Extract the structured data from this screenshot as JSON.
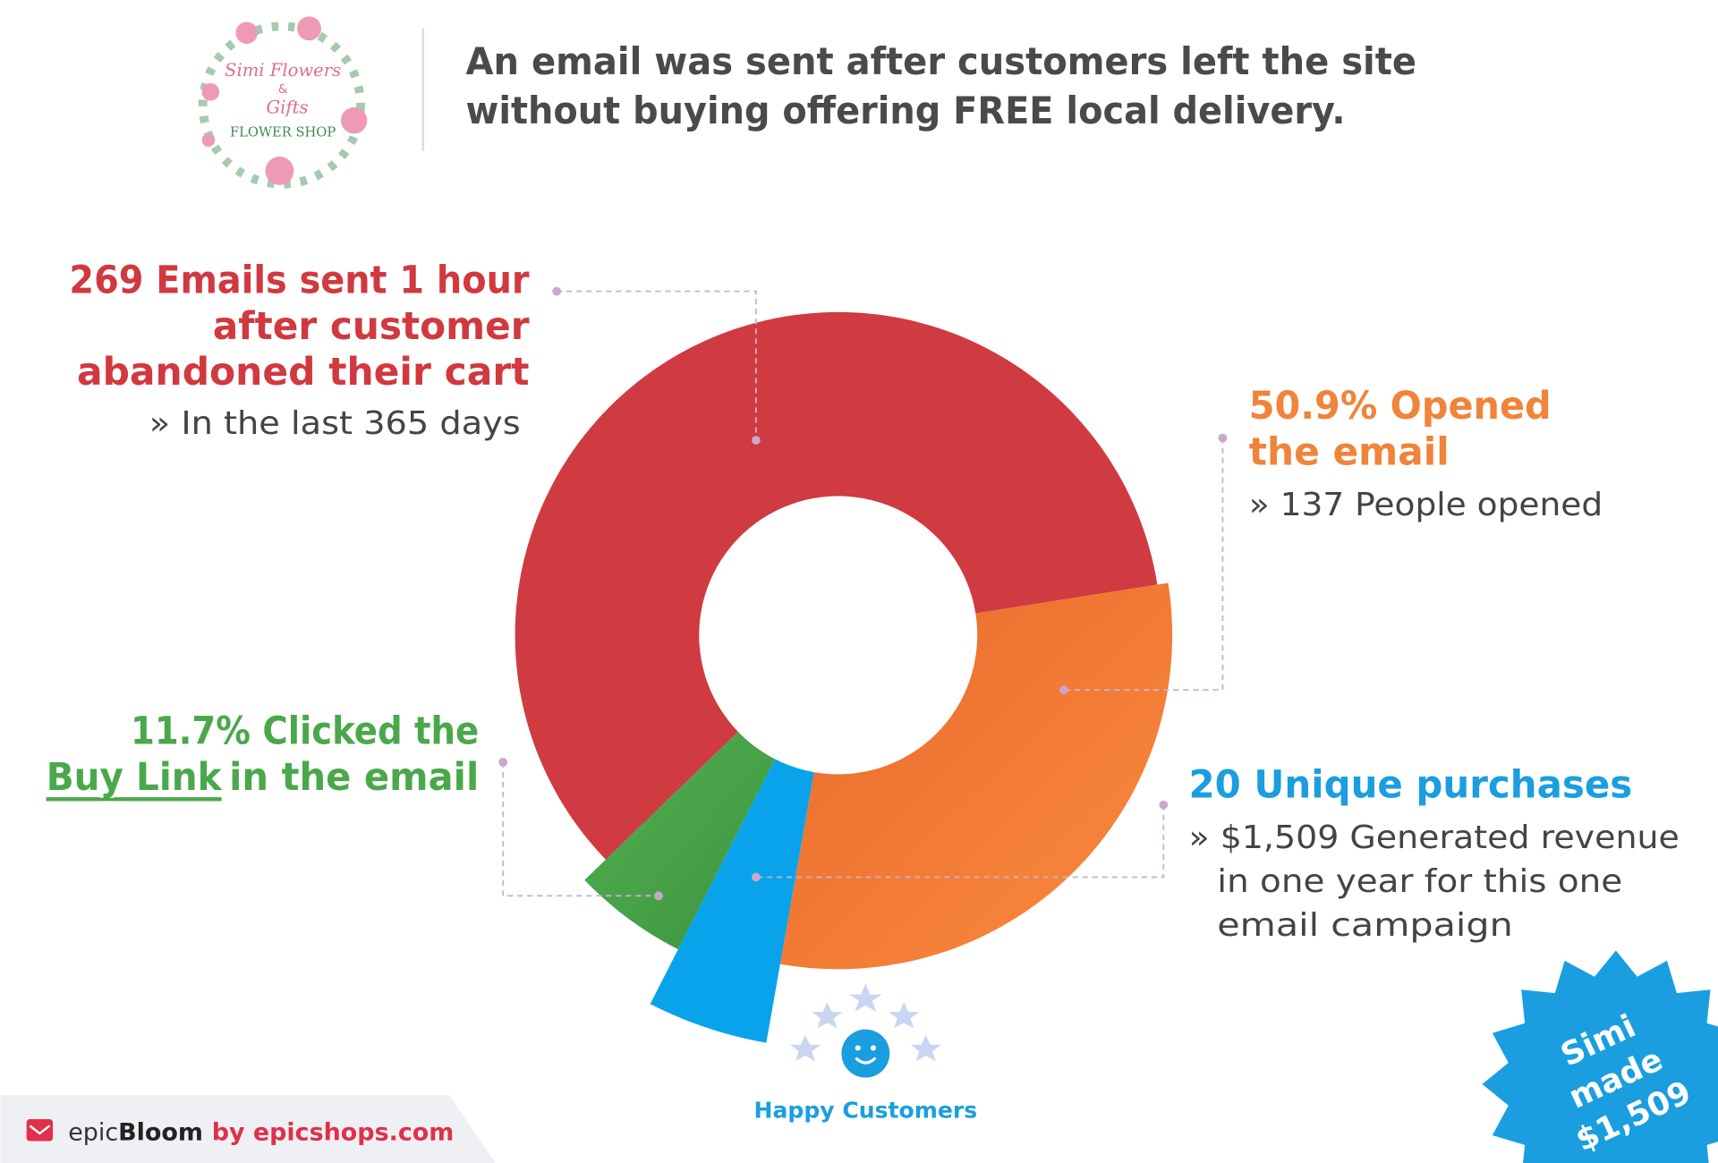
{
  "header": {
    "logo": [
      "Simi Flowers",
      "&",
      "Gifts",
      "FLOWER SHOP"
    ],
    "title": [
      "An email was sent after customers left the site",
      "without buying offering FREE local delivery."
    ]
  },
  "callouts": {
    "sent": {
      "title": [
        "269 Emails sent 1 hour",
        "after customer",
        "abandoned their cart"
      ],
      "note": "» In the last 365 days"
    },
    "opened": {
      "title": [
        "50.9% Opened",
        "the email"
      ],
      "note": "» 137 People opened"
    },
    "clicked": {
      "title": "11.7% Clicked the",
      "link": "Buy Link",
      "rest": "in the email"
    },
    "purchases": {
      "title": "20 Unique purchases",
      "note": [
        "» $1,509 Generated revenue",
        "in one year for this one",
        "email campaign"
      ]
    }
  },
  "icon_label": "Happy Customers",
  "badge": [
    "Simi",
    "made",
    "$1,509"
  ],
  "footer": {
    "brand_light": "epic",
    "brand_bold": "Bloom",
    "by": "by epicshops.com"
  }
}
